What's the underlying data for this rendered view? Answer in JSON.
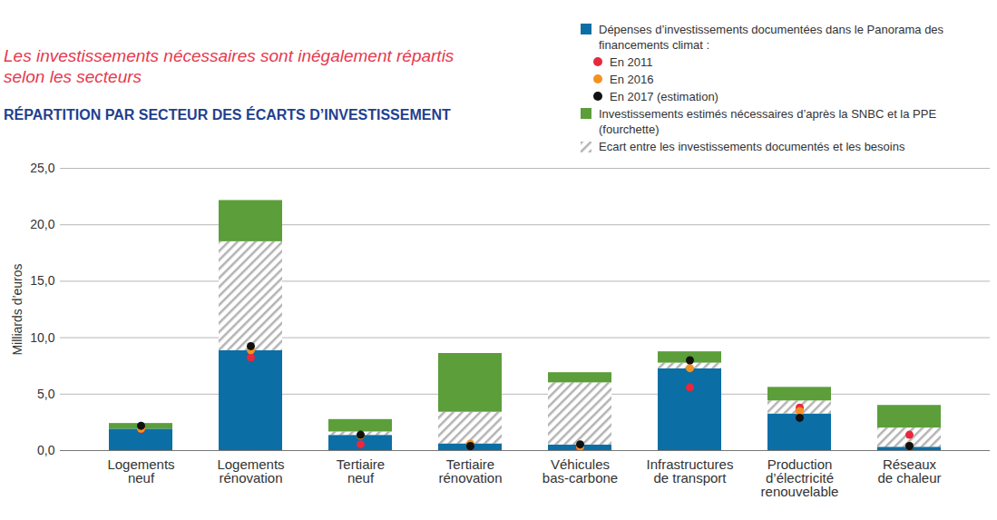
{
  "chart_data": {
    "type": "bar",
    "stacked": true,
    "title": "Les investissements nécessaires sont inégalement répartis selon les secteurs",
    "subtitle": "RÉPARTITION PAR SECTEUR DES ÉCARTS D’INVESTISSEMENT",
    "ylabel": "Milliards d’euros",
    "legend": "upper right",
    "grid": true,
    "categories": [
      "Logements\nneuf",
      "Logements\nrénovation",
      "Tertiaire\nneuf",
      "Tertiaire\nrénovation",
      "Véhicules\nbas-carbone",
      "Infrastructures\nde transport",
      "Production\nd’électricité\nrenouvelable",
      "Réseaux\nde chaleur"
    ],
    "ylim": [
      0,
      25
    ],
    "yticks": [
      {
        "value": 0,
        "label": "0,0"
      },
      {
        "value": 5,
        "label": "5,0"
      },
      {
        "value": 10,
        "label": "10,0"
      },
      {
        "value": 15,
        "label": "15,0"
      },
      {
        "value": 20,
        "label": "20,0"
      },
      {
        "value": 25,
        "label": "25,0"
      }
    ],
    "series": [
      {
        "name": "Dépenses d’investissements documentées dans le Panorama des financements climat :",
        "type": "bar",
        "color": "#0b6ea5",
        "values": [
          1.9,
          8.85,
          1.35,
          0.6,
          0.5,
          7.25,
          3.25,
          0.3
        ]
      },
      {
        "name": "Ecart entre les investissements documentés et les besoins",
        "type": "bar",
        "color": "#b3b3b3",
        "line_style": "hatched",
        "values": [
          0,
          9.65,
          0.3,
          2.8,
          5.5,
          0.5,
          1.15,
          1.7
        ]
      },
      {
        "name": "Investissements estimés nécessaires d’après la SNBC et la PPE (fourchette)",
        "type": "bar",
        "color": "#5b9e3a",
        "values": [
          0.5,
          3.65,
          1.1,
          5.2,
          0.9,
          1.0,
          1.2,
          2.0
        ]
      },
      {
        "name": "En 2011",
        "type": "scatter",
        "marker": "circle",
        "color": "#e8283c",
        "values": [
          1.9,
          8.25,
          0.55,
          0.5,
          0.1,
          5.6,
          3.8,
          1.4
        ]
      },
      {
        "name": "En 2016",
        "type": "scatter",
        "marker": "circle",
        "color": "#f39220",
        "values": [
          1.95,
          8.9,
          1.35,
          0.6,
          0.35,
          7.3,
          3.5,
          0.4
        ]
      },
      {
        "name": "En 2017 (estimation)",
        "type": "scatter",
        "marker": "circle",
        "color": "#111111",
        "values": [
          2.2,
          9.25,
          1.4,
          0.4,
          0.55,
          8.0,
          2.9,
          0.4
        ]
      }
    ]
  }
}
